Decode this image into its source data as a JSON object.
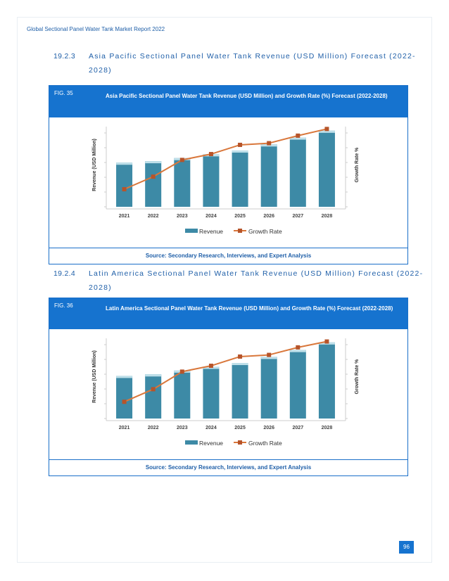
{
  "header": {
    "title": "Global Sectional Panel Water Tank Market Report 2022"
  },
  "sections": [
    {
      "number": "19.2.3",
      "title_line1": "Asia Pacific Sectional Panel Water Tank Revenue (USD Million) Forecast (2022-",
      "title_line2": "2028)"
    },
    {
      "number": "19.2.4",
      "title_line1": "Latin America Sectional Panel Water Tank Revenue (USD Million) Forecast (2022-",
      "title_line2": "2028)"
    }
  ],
  "figures": [
    {
      "label": "FIG. 35",
      "title": "Asia Pacific Sectional Panel Water Tank Revenue (USD Million) and Growth Rate (%) Forecast (2022-2028)",
      "source": "Source: Secondary Research, Interviews, and Expert Analysis"
    },
    {
      "label": "FIG. 36",
      "title": "Latin America Sectional Panel Water Tank Revenue (USD Million) and Growth Rate (%) Forecast (2022-2028)",
      "source": "Source: Secondary Research, Interviews, and Expert Analysis"
    }
  ],
  "chart_data": [
    {
      "type": "bar",
      "categories": [
        "2021",
        "2022",
        "2023",
        "2024",
        "2025",
        "2026",
        "2027",
        "2028"
      ],
      "series": [
        {
          "name": "Revenue",
          "type": "bar",
          "values": [
            58,
            60,
            64,
            69,
            74,
            82,
            91,
            100
          ]
        },
        {
          "name": "Growth Rate",
          "type": "line",
          "values": [
            21,
            36,
            56,
            63,
            74,
            76,
            85,
            93
          ]
        }
      ],
      "ylabel": "Revenue (USD Million)",
      "y2label": "Growth Rate %",
      "ylim": [
        0,
        110
      ],
      "y2lim": [
        0,
        100
      ],
      "colors": {
        "bar": "#3d8aa6",
        "bar_top": "#bfe0ea",
        "line": "#d9773b",
        "marker": "#b6542a"
      },
      "grid": false,
      "legend": "bottom"
    },
    {
      "type": "bar",
      "categories": [
        "2021",
        "2022",
        "2023",
        "2024",
        "2025",
        "2026",
        "2027",
        "2028"
      ],
      "series": [
        {
          "name": "Revenue",
          "type": "bar",
          "values": [
            56,
            58,
            63,
            68,
            73,
            81,
            90,
            100
          ]
        },
        {
          "name": "Growth Rate",
          "type": "line",
          "values": [
            20,
            35,
            56,
            63,
            74,
            76,
            85,
            92
          ]
        }
      ],
      "ylabel": "Revenue (USD Million)",
      "y2label": "Growth Rate %",
      "ylim": [
        0,
        110
      ],
      "y2lim": [
        0,
        100
      ],
      "colors": {
        "bar": "#3d8aa6",
        "bar_top": "#bfe0ea",
        "line": "#d9773b",
        "marker": "#b6542a"
      },
      "grid": false,
      "legend": "bottom"
    }
  ],
  "footer": {
    "page_number": "96"
  }
}
